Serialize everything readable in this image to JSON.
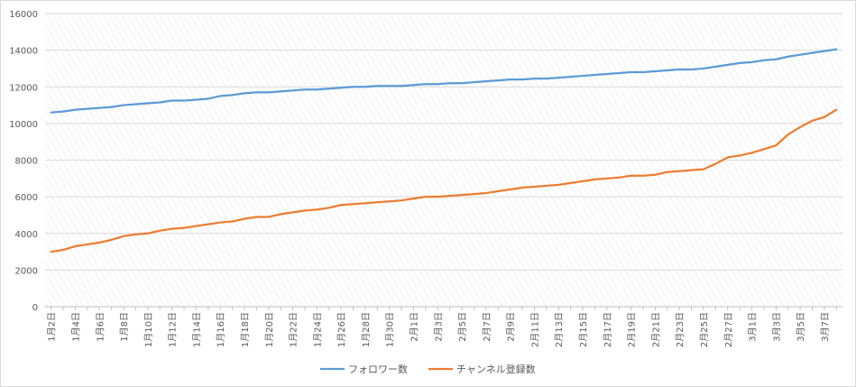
{
  "chart_data": {
    "type": "line",
    "title": "",
    "xlabel": "",
    "ylabel": "",
    "ylim": [
      0,
      16000
    ],
    "yticks": [
      0,
      2000,
      4000,
      6000,
      8000,
      10000,
      12000,
      14000,
      16000
    ],
    "grid": true,
    "legend_position": "bottom",
    "x": [
      "1月2日",
      "1月3日",
      "1月4日",
      "1月5日",
      "1月6日",
      "1月7日",
      "1月8日",
      "1月9日",
      "1月10日",
      "1月11日",
      "1月12日",
      "1月13日",
      "1月14日",
      "1月15日",
      "1月16日",
      "1月17日",
      "1月18日",
      "1月19日",
      "1月20日",
      "1月21日",
      "1月22日",
      "1月23日",
      "1月24日",
      "1月25日",
      "1月26日",
      "1月27日",
      "1月28日",
      "1月29日",
      "1月30日",
      "1月31日",
      "2月1日",
      "2月2日",
      "2月3日",
      "2月4日",
      "2月5日",
      "2月6日",
      "2月7日",
      "2月8日",
      "2月9日",
      "2月10日",
      "2月11日",
      "2月12日",
      "2月13日",
      "2月14日",
      "2月15日",
      "2月16日",
      "2月17日",
      "2月18日",
      "2月19日",
      "2月20日",
      "2月21日",
      "2月22日",
      "2月23日",
      "2月24日",
      "2月25日",
      "2月26日",
      "2月27日",
      "2月28日",
      "3月1日",
      "3月2日",
      "3月3日",
      "3月4日",
      "3月5日",
      "3月6日",
      "3月7日",
      "3月8日"
    ],
    "x_tick_labels": [
      "1月2日",
      "1月4日",
      "1月6日",
      "1月8日",
      "1月10日",
      "1月12日",
      "1月14日",
      "1月16日",
      "1月18日",
      "1月20日",
      "1月22日",
      "1月24日",
      "1月26日",
      "1月28日",
      "1月30日",
      "2月1日",
      "2月3日",
      "2月5日",
      "2月7日",
      "2月9日",
      "2月11日",
      "2月13日",
      "2月15日",
      "2月17日",
      "2月19日",
      "2月21日",
      "2月23日",
      "2月25日",
      "2月27日",
      "3月1日",
      "3月3日",
      "3月5日",
      "3月7日"
    ],
    "series": [
      {
        "name": "フォロワー数",
        "color": "#5b9bd5",
        "values": [
          10600,
          10650,
          10750,
          10800,
          10850,
          10900,
          11000,
          11050,
          11100,
          11150,
          11250,
          11250,
          11300,
          11350,
          11500,
          11550,
          11650,
          11700,
          11700,
          11750,
          11800,
          11850,
          11850,
          11900,
          11950,
          12000,
          12000,
          12050,
          12050,
          12050,
          12100,
          12150,
          12150,
          12200,
          12200,
          12250,
          12300,
          12350,
          12400,
          12400,
          12450,
          12450,
          12500,
          12550,
          12600,
          12650,
          12700,
          12750,
          12800,
          12800,
          12850,
          12900,
          12950,
          12950,
          13000,
          13100,
          13200,
          13300,
          13350,
          13450,
          13500,
          13650,
          13750,
          13850,
          13950,
          14050
        ]
      },
      {
        "name": "チャンネル登録数",
        "color": "#ed7d31",
        "values": [
          3000,
          3100,
          3300,
          3400,
          3500,
          3650,
          3850,
          3950,
          4000,
          4150,
          4250,
          4300,
          4400,
          4500,
          4600,
          4650,
          4800,
          4900,
          4900,
          5050,
          5150,
          5250,
          5300,
          5400,
          5550,
          5600,
          5650,
          5700,
          5750,
          5800,
          5900,
          6000,
          6000,
          6050,
          6100,
          6150,
          6200,
          6300,
          6400,
          6500,
          6550,
          6600,
          6650,
          6750,
          6850,
          6950,
          7000,
          7050,
          7150,
          7150,
          7200,
          7350,
          7400,
          7450,
          7500,
          7800,
          8150,
          8250,
          8400,
          8600,
          8800,
          9400,
          9800,
          10150,
          10350,
          10750
        ]
      }
    ]
  }
}
